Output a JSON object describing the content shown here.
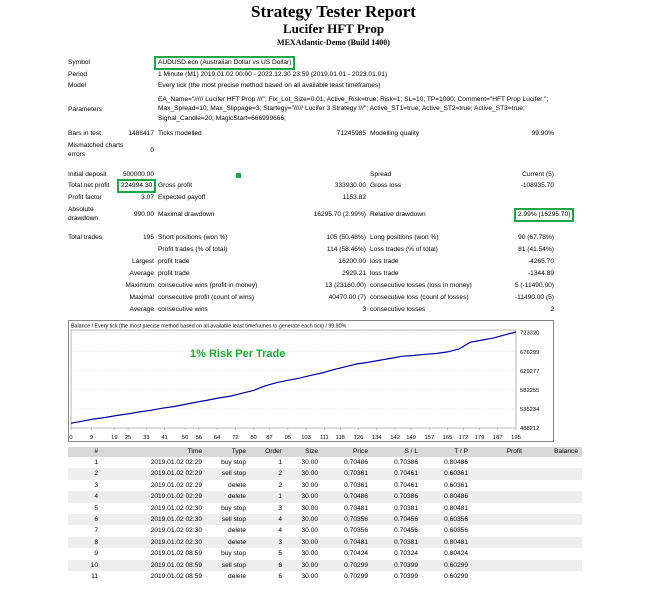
{
  "header": {
    "title": "Strategy Tester Report",
    "subtitle": "Lucifer HFT Prop",
    "server": "MEXAtlantic-Demo (Build 1400)"
  },
  "summary": {
    "symbol_label": "Symbol",
    "symbol_value": "AUDUSD.ecn (Australian Dollar vs US Dollar)",
    "period_label": "Period",
    "period_value": "1 Minute (M1) 2019.01.02 00:00 - 2022.12.30 23:59 (2019.01.01 - 2023.01.01)",
    "model_label": "Model",
    "model_value": "Every tick (the most precise method based on all available least timeframes)",
    "parameters_label": "Parameters",
    "parameters_value": "EA_Name=\"///// Lucifer HFT Prop ///\"; Fix_Lot_Size=0.01; Active_Risk=true; Risk=1; SL=10; TP=1000; Comment=\"HFT Prop Lucifer \"; Max_Spread=10; Max_Slippage=3; Startegy=\"///// Lucifer 3 Strategy ///\"; Active_ST1=true; Active_ST2=true; Active_ST3=true; Signal_Candle=20; MagicStart=666999666;",
    "bars_label": "Bars in test",
    "bars_value": "1488417",
    "ticks_label": "Ticks modelled",
    "ticks_value": "71245985",
    "quality_label": "Modelling quality",
    "quality_value": "99.90%",
    "mismatch_label": "Mismatched charts errors",
    "mismatch_value": "0",
    "deposit_label": "Initial deposit",
    "deposit_value": "500000.00",
    "spread_label": "Spread",
    "spread_value": "Current (5)",
    "net_profit_label": "Total net profit",
    "net_profit_value": "224994.30",
    "gross_profit_label": "Gross profit",
    "gross_profit_value": "333930.00",
    "gross_loss_label": "Gross loss",
    "gross_loss_value": "-108935.70",
    "profit_factor_label": "Profit factor",
    "profit_factor_value": "3.07",
    "payoff_label": "Expected payoff",
    "payoff_value": "1153.82",
    "abs_dd_label": "Absolute drawdown",
    "abs_dd_value": "990.00",
    "max_dd_label": "Maximal drawdown",
    "max_dd_value": "16295.70 (2.99%)",
    "rel_dd_label": "Relative drawdown",
    "rel_dd_value": "2.99% (16295.70)",
    "trades_label": "Total trades",
    "trades_value": "195",
    "short_label": "Short positions (won %)",
    "short_value": "105 (50.48%)",
    "long_label": "Long positions (won %)",
    "long_value": "90 (67.78%)",
    "pt_label": "Profit trades (% of total)",
    "pt_value": "114 (58.46%)",
    "lt_label": "Loss trades (% of total)",
    "lt_value": "81 (41.54%)",
    "largest_label": "Largest",
    "lg_profit_label": "profit trade",
    "lg_profit_value": "16200.00",
    "lg_loss_label": "loss trade",
    "lg_loss_value": "-4265.70",
    "average_label": "Average",
    "avg_profit_label": "profit trade",
    "avg_profit_value": "2929.21",
    "avg_loss_label": "loss trade",
    "avg_loss_value": "-1344.89",
    "maximum_label": "Maximum",
    "max_cw_label": "consecutive wins (profit in money)",
    "max_cw_value": "13 (23160.00)",
    "max_cl_label": "consecutive losses (loss in money)",
    "max_cl_value": "5 (-11490.00)",
    "maximal_label": "Maximal",
    "mxl_cp_label": "consecutive profit (count of wins)",
    "mxl_cp_value": "40470.00 (7)",
    "mxl_cl_label": "consecutive loss (count of losses)",
    "mxl_cl_value": "-11490.00 (5)",
    "average2_label": "Average",
    "avg_cw_label": "consecutive wins",
    "avg_cw_value": "3",
    "avg_cl_label": "consecutive losses",
    "avg_cl_value": "2"
  },
  "chart_data": {
    "type": "line",
    "title": "Balance / Every tick (the most precise method based on all available least timeframes to generate each tick) / 99.90%",
    "annotation": "1% Risk Per Trade",
    "x_ticks": [
      0,
      9,
      19,
      25,
      33,
      41,
      50,
      56,
      64,
      72,
      80,
      87,
      95,
      103,
      111,
      118,
      126,
      134,
      142,
      149,
      157,
      165,
      172,
      179,
      187,
      195
    ],
    "y_ticks": [
      723320,
      676299,
      629277,
      582255,
      535234,
      488212
    ],
    "xlim": [
      0,
      195
    ],
    "ylim": [
      488212,
      730000
    ],
    "line_color": "#0000a0",
    "x": [
      0,
      5,
      10,
      15,
      20,
      25,
      30,
      35,
      40,
      45,
      50,
      55,
      60,
      65,
      70,
      75,
      80,
      85,
      90,
      95,
      100,
      105,
      110,
      115,
      120,
      125,
      130,
      135,
      140,
      145,
      150,
      155,
      160,
      165,
      170,
      175,
      180,
      185,
      190,
      195
    ],
    "values": [
      500000,
      505000,
      510500,
      514000,
      519000,
      523000,
      528000,
      532000,
      537000,
      541000,
      546500,
      552000,
      557000,
      562500,
      567000,
      574000,
      581000,
      592000,
      600000,
      606000,
      611000,
      618000,
      624000,
      632000,
      639000,
      646000,
      650000,
      655000,
      660000,
      665000,
      667000,
      670000,
      672000,
      676000,
      683000,
      700000,
      705000,
      710000,
      718000,
      724994
    ]
  },
  "trades": {
    "headers": [
      "#",
      "Time",
      "Type",
      "Order",
      "Size",
      "Price",
      "S / L",
      "T / P",
      "Profit",
      "Balance"
    ],
    "rows": [
      [
        "1",
        "2019.01.02 02:29",
        "buy stop",
        "1",
        "30.00",
        "0.70486",
        "0.70386",
        "0.80486",
        "",
        ""
      ],
      [
        "2",
        "2019.01.02 02:29",
        "sell stop",
        "2",
        "30.00",
        "0.70361",
        "0.70461",
        "0.60361",
        "",
        ""
      ],
      [
        "3",
        "2019.01.02 02:29",
        "delete",
        "2",
        "30.00",
        "0.70361",
        "0.70461",
        "0.60361",
        "",
        ""
      ],
      [
        "4",
        "2019.01.02 02:29",
        "delete",
        "1",
        "30.00",
        "0.70486",
        "0.70386",
        "0.80486",
        "",
        ""
      ],
      [
        "5",
        "2019.01.02 02:30",
        "buy stop",
        "3",
        "30.00",
        "0.70481",
        "0.70381",
        "0.80481",
        "",
        ""
      ],
      [
        "6",
        "2019.01.02 02:30",
        "sell stop",
        "4",
        "30.00",
        "0.70356",
        "0.70456",
        "0.60356",
        "",
        ""
      ],
      [
        "7",
        "2019.01.02 02:30",
        "delete",
        "4",
        "30.00",
        "0.70356",
        "0.70456",
        "0.60356",
        "",
        ""
      ],
      [
        "8",
        "2019.01.02 02:30",
        "delete",
        "3",
        "30.00",
        "0.70481",
        "0.70381",
        "0.80481",
        "",
        ""
      ],
      [
        "9",
        "2019.01.02 08:59",
        "buy stop",
        "5",
        "30.00",
        "0.70424",
        "0.70324",
        "0.80424",
        "",
        ""
      ],
      [
        "10",
        "2019.01.02 08:59",
        "sell stop",
        "6",
        "30.00",
        "0.70299",
        "0.70399",
        "0.60299",
        "",
        ""
      ],
      [
        "11",
        "2019.01.02 08:59",
        "delete",
        "6",
        "30.00",
        "0.70299",
        "0.70399",
        "0.60299",
        "",
        ""
      ]
    ]
  }
}
